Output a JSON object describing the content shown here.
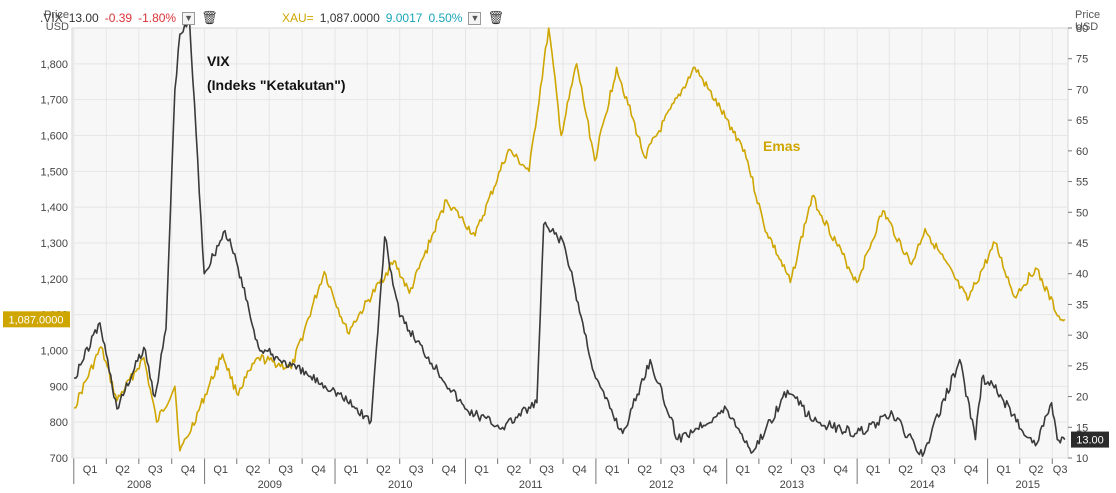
{
  "axis_titles": {
    "left": [
      "Price",
      "USD"
    ],
    "right": [
      "Price",
      "USD"
    ]
  },
  "legend": [
    {
      "ticker": ".VIX",
      "last": "13.00",
      "change": "-0.39",
      "change_pct": "-1.80%",
      "change_color": "#d9343a"
    },
    {
      "ticker": "XAU=",
      "last": "1,087.0000",
      "change": "9.0017",
      "change_pct": "0.50%",
      "change_color": "#1aa5b8"
    }
  ],
  "price_flags": {
    "left": "1,087.0000",
    "right": "13.00"
  },
  "annotations": {
    "vix_line1": "VIX",
    "vix_line2": "(Indeks \"Ketakutan\")",
    "gold": "Emas"
  },
  "colors": {
    "vix": "#3a3a3a",
    "gold": "#cfa600",
    "grid": "#e6e6e6",
    "panel": "#f7f7f7"
  },
  "chart_data": {
    "type": "line",
    "x_quarters": [
      "Q1",
      "Q2",
      "Q3",
      "Q4",
      "Q1",
      "Q2",
      "Q3",
      "Q4",
      "Q1",
      "Q2",
      "Q3",
      "Q4",
      "Q1",
      "Q2",
      "Q3",
      "Q4",
      "Q1",
      "Q2",
      "Q3",
      "Q4",
      "Q1",
      "Q2",
      "Q3",
      "Q4",
      "Q1",
      "Q2",
      "Q3",
      "Q4",
      "Q1",
      "Q2",
      "Q3"
    ],
    "x_years": [
      "2008",
      "2009",
      "2010",
      "2011",
      "2012",
      "2013",
      "2014",
      "2015"
    ],
    "left_axis": {
      "label": "Price USD",
      "ticks": [
        "700",
        "800",
        "900",
        "1,000",
        "1,100",
        "1,200",
        "1,300",
        "1,400",
        "1,500",
        "1,600",
        "1,700",
        "1,800"
      ],
      "range": [
        700,
        1900
      ]
    },
    "right_axis": {
      "label": "Price USD",
      "ticks": [
        "10",
        "15",
        "20",
        "25",
        "30",
        "35",
        "40",
        "45",
        "50",
        "55",
        "60",
        "65",
        "70",
        "75",
        "80"
      ],
      "range": [
        10,
        80
      ]
    },
    "series": [
      {
        "name": "XAU=",
        "axis": "left",
        "points": [
          [
            "2008-01-02",
            840
          ],
          [
            "2008-03-17",
            1010
          ],
          [
            "2008-05-01",
            860
          ],
          [
            "2008-07-15",
            980
          ],
          [
            "2008-08-20",
            800
          ],
          [
            "2008-10-10",
            900
          ],
          [
            "2008-10-24",
            720
          ],
          [
            "2008-11-15",
            760
          ],
          [
            "2009-02-20",
            990
          ],
          [
            "2009-04-01",
            880
          ],
          [
            "2009-06-01",
            980
          ],
          [
            "2009-09-01",
            950
          ],
          [
            "2009-12-02",
            1220
          ],
          [
            "2010-02-05",
            1050
          ],
          [
            "2010-06-15",
            1250
          ],
          [
            "2010-07-28",
            1160
          ],
          [
            "2010-11-09",
            1420
          ],
          [
            "2011-01-28",
            1320
          ],
          [
            "2011-05-01",
            1560
          ],
          [
            "2011-06-28",
            1500
          ],
          [
            "2011-08-22",
            1900
          ],
          [
            "2011-09-26",
            1600
          ],
          [
            "2011-11-08",
            1800
          ],
          [
            "2011-12-29",
            1530
          ],
          [
            "2012-02-28",
            1790
          ],
          [
            "2012-05-16",
            1540
          ],
          [
            "2012-10-04",
            1790
          ],
          [
            "2012-12-28",
            1650
          ],
          [
            "2013-02-20",
            1560
          ],
          [
            "2013-04-15",
            1350
          ],
          [
            "2013-06-28",
            1190
          ],
          [
            "2013-08-28",
            1430
          ],
          [
            "2013-12-31",
            1190
          ],
          [
            "2014-03-14",
            1390
          ],
          [
            "2014-06-02",
            1240
          ],
          [
            "2014-07-10",
            1340
          ],
          [
            "2014-11-06",
            1140
          ],
          [
            "2015-01-22",
            1300
          ],
          [
            "2015-03-17",
            1150
          ],
          [
            "2015-05-15",
            1230
          ],
          [
            "2015-07-24",
            1085
          ],
          [
            "2015-08-05",
            1087
          ]
        ]
      },
      {
        "name": ".VIX",
        "axis": "right",
        "points": [
          [
            "2008-01-02",
            23
          ],
          [
            "2008-03-14",
            32
          ],
          [
            "2008-05-01",
            18
          ],
          [
            "2008-07-15",
            28
          ],
          [
            "2008-08-15",
            20
          ],
          [
            "2008-09-15",
            31
          ],
          [
            "2008-10-10",
            70
          ],
          [
            "2008-10-24",
            79
          ],
          [
            "2008-11-20",
            81
          ],
          [
            "2008-12-31",
            40
          ],
          [
            "2009-02-27",
            47
          ],
          [
            "2009-03-31",
            42
          ],
          [
            "2009-06-01",
            28
          ],
          [
            "2009-09-01",
            25
          ],
          [
            "2009-12-31",
            21
          ],
          [
            "2010-04-12",
            16
          ],
          [
            "2010-05-20",
            46
          ],
          [
            "2010-07-01",
            33
          ],
          [
            "2010-12-31",
            18
          ],
          [
            "2011-04-15",
            15
          ],
          [
            "2011-07-20",
            19
          ],
          [
            "2011-08-08",
            48
          ],
          [
            "2011-10-03",
            45
          ],
          [
            "2011-12-31",
            23
          ],
          [
            "2012-03-16",
            14
          ],
          [
            "2012-06-01",
            26
          ],
          [
            "2012-08-17",
            13
          ],
          [
            "2012-12-31",
            18
          ],
          [
            "2013-03-15",
            11
          ],
          [
            "2013-06-20",
            21
          ],
          [
            "2013-09-01",
            16
          ],
          [
            "2013-12-31",
            14
          ],
          [
            "2014-04-11",
            17
          ],
          [
            "2014-07-03",
            10.3
          ],
          [
            "2014-10-15",
            26
          ],
          [
            "2014-11-28",
            13
          ],
          [
            "2014-12-16",
            23
          ],
          [
            "2015-01-15",
            22
          ],
          [
            "2015-03-13",
            17
          ],
          [
            "2015-05-15",
            12
          ],
          [
            "2015-06-29",
            19
          ],
          [
            "2015-07-15",
            13
          ],
          [
            "2015-08-05",
            13.0
          ]
        ]
      }
    ]
  }
}
